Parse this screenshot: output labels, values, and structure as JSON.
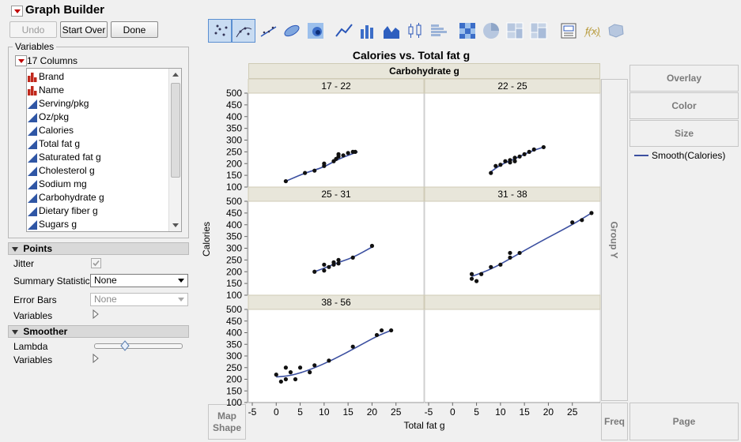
{
  "window": {
    "title": "Graph Builder"
  },
  "toolbar_buttons": {
    "undo": "Undo",
    "start_over": "Start Over",
    "done": "Done"
  },
  "variables_panel": {
    "title": "Variables",
    "columns_count_label": "17 Columns",
    "columns": [
      {
        "name": "Brand",
        "type": "nominal"
      },
      {
        "name": "Name",
        "type": "nominal"
      },
      {
        "name": "Serving/pkg",
        "type": "continuous"
      },
      {
        "name": "Oz/pkg",
        "type": "continuous"
      },
      {
        "name": "Calories",
        "type": "continuous"
      },
      {
        "name": "Total fat g",
        "type": "continuous"
      },
      {
        "name": "Saturated fat g",
        "type": "continuous"
      },
      {
        "name": "Cholesterol g",
        "type": "continuous"
      },
      {
        "name": "Sodium mg",
        "type": "continuous"
      },
      {
        "name": "Carbohydrate g",
        "type": "continuous"
      },
      {
        "name": "Dietary fiber g",
        "type": "continuous"
      },
      {
        "name": "Sugars g",
        "type": "continuous"
      }
    ]
  },
  "points_section": {
    "title": "Points",
    "jitter_label": "Jitter",
    "jitter_checked": true,
    "summary_statistic_label": "Summary Statistic",
    "summary_statistic_value": "None",
    "error_bars_label": "Error Bars",
    "error_bars_value": "None",
    "variables_label": "Variables"
  },
  "smoother_section": {
    "title": "Smoother",
    "lambda_label": "Lambda",
    "lambda_value": 0.35,
    "variables_label": "Variables"
  },
  "element_toolbar": [
    {
      "icon": "points-icon",
      "selected": true
    },
    {
      "icon": "jittered-points-icon",
      "selected": true
    },
    {
      "icon": "smoother-line-icon",
      "selected": false
    },
    {
      "icon": "ellipse-icon",
      "selected": false
    },
    {
      "icon": "contour-icon",
      "selected": false
    },
    {
      "icon": "line-icon",
      "selected": false
    },
    {
      "icon": "bar-icon",
      "selected": false
    },
    {
      "icon": "area-icon",
      "selected": false
    },
    {
      "icon": "box-plot-icon",
      "selected": false
    },
    {
      "icon": "histogram-icon",
      "selected": false
    },
    {
      "icon": "heatmap-icon",
      "selected": false
    },
    {
      "icon": "pie-icon",
      "selected": false
    },
    {
      "icon": "treemap-icon",
      "selected": false
    },
    {
      "icon": "mosaic-icon",
      "selected": false
    },
    {
      "icon": "caption-box-icon",
      "selected": false
    },
    {
      "icon": "formula-icon",
      "selected": false
    },
    {
      "icon": "map-shapes-icon",
      "selected": false
    }
  ],
  "drop_zones": {
    "overlay": "Overlay",
    "color": "Color",
    "size": "Size",
    "group_y": "Group Y",
    "freq": "Freq",
    "page": "Page",
    "map_shape_line1": "Map",
    "map_shape_line2": "Shape"
  },
  "legend": {
    "items": [
      {
        "label": "Smooth(Calories)",
        "color": "#3b4fa0"
      }
    ]
  },
  "chart_data": {
    "type": "scatter",
    "title": "Calories vs. Total fat g",
    "xlabel": "Total fat g",
    "ylabel": "Calories",
    "facet_label": "Carbohydrate g",
    "xlim": [
      -5,
      30
    ],
    "ylim": [
      100,
      500
    ],
    "x_ticks": [
      -5,
      0,
      5,
      10,
      15,
      20,
      25
    ],
    "y_ticks": [
      100,
      150,
      200,
      250,
      300,
      350,
      400,
      450,
      500
    ],
    "series_color": "#3b4fa0",
    "point_color": "#111111",
    "facets": [
      {
        "label": "17 - 22",
        "points": [
          [
            2,
            125
          ],
          [
            6,
            160
          ],
          [
            8,
            170
          ],
          [
            10,
            190
          ],
          [
            10,
            200
          ],
          [
            12,
            210
          ],
          [
            12.5,
            220
          ],
          [
            13,
            230
          ],
          [
            13,
            240
          ],
          [
            14,
            235
          ],
          [
            15,
            245
          ],
          [
            16,
            250
          ],
          [
            16.5,
            250
          ]
        ],
        "smooth": [
          [
            2,
            125
          ],
          [
            6,
            160
          ],
          [
            10,
            185
          ],
          [
            13,
            220
          ],
          [
            17,
            250
          ]
        ]
      },
      {
        "label": "22 - 25",
        "points": [
          [
            8,
            160
          ],
          [
            9,
            190
          ],
          [
            10,
            195
          ],
          [
            11,
            210
          ],
          [
            12,
            215
          ],
          [
            12,
            205
          ],
          [
            13,
            210
          ],
          [
            13,
            225
          ],
          [
            14,
            230
          ],
          [
            15,
            240
          ],
          [
            16,
            250
          ],
          [
            17,
            260
          ],
          [
            19,
            270
          ]
        ],
        "smooth": [
          [
            8,
            165
          ],
          [
            10,
            195
          ],
          [
            13,
            220
          ],
          [
            16,
            250
          ],
          [
            19,
            270
          ]
        ]
      },
      {
        "label": "25 - 31",
        "points": [
          [
            8,
            200
          ],
          [
            10,
            230
          ],
          [
            10,
            205
          ],
          [
            11,
            220
          ],
          [
            12,
            240
          ],
          [
            12,
            230
          ],
          [
            13,
            250
          ],
          [
            13,
            235
          ],
          [
            16,
            260
          ],
          [
            20,
            310
          ]
        ],
        "smooth": [
          [
            8,
            200
          ],
          [
            10,
            215
          ],
          [
            13,
            240
          ],
          [
            16,
            260
          ],
          [
            20,
            305
          ]
        ]
      },
      {
        "label": "31 - 38",
        "points": [
          [
            4,
            170
          ],
          [
            4,
            190
          ],
          [
            5,
            160
          ],
          [
            6,
            190
          ],
          [
            8,
            220
          ],
          [
            10,
            230
          ],
          [
            12,
            260
          ],
          [
            12,
            280
          ],
          [
            14,
            280
          ],
          [
            25,
            410
          ],
          [
            27,
            420
          ],
          [
            29,
            450
          ]
        ],
        "smooth": [
          [
            4,
            180
          ],
          [
            8,
            210
          ],
          [
            12,
            255
          ],
          [
            18,
            325
          ],
          [
            25,
            400
          ],
          [
            29,
            450
          ]
        ]
      },
      {
        "label": "38 - 56",
        "points": [
          [
            0,
            220
          ],
          [
            1,
            190
          ],
          [
            2,
            250
          ],
          [
            2,
            200
          ],
          [
            3,
            230
          ],
          [
            4,
            200
          ],
          [
            5,
            250
          ],
          [
            7,
            230
          ],
          [
            8,
            260
          ],
          [
            11,
            280
          ],
          [
            16,
            340
          ],
          [
            21,
            390
          ],
          [
            22,
            410
          ],
          [
            24,
            410
          ]
        ],
        "smooth": [
          [
            0,
            210
          ],
          [
            3,
            215
          ],
          [
            7,
            240
          ],
          [
            12,
            285
          ],
          [
            17,
            340
          ],
          [
            21,
            385
          ],
          [
            24,
            410
          ]
        ]
      }
    ]
  }
}
